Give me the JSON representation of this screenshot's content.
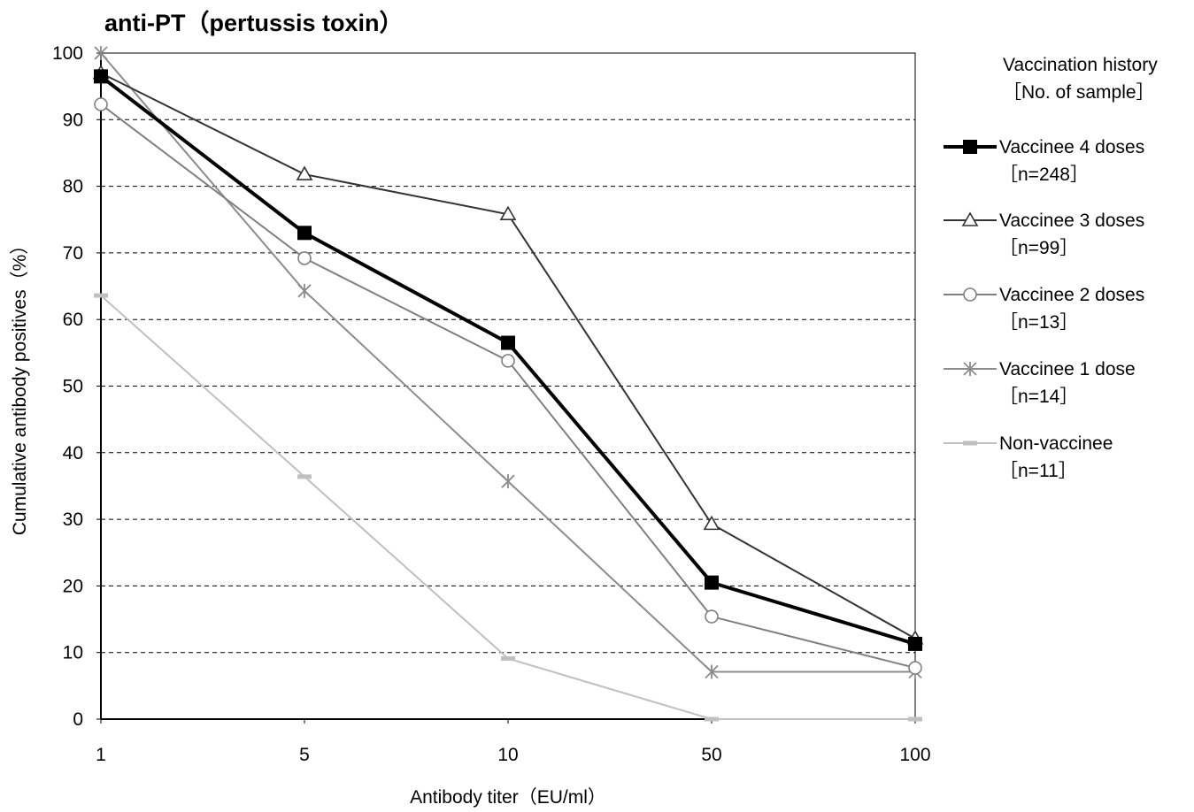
{
  "chart_data": {
    "type": "line",
    "title": "anti-PT（pertussis toxin）",
    "xlabel": "Antibody titer（EU/ml）",
    "ylabel": "Cumulative antibody positives（%）",
    "categories": [
      "1",
      "5",
      "10",
      "50",
      "100"
    ],
    "ylim": [
      0,
      100
    ],
    "yticks": [
      "0",
      "10",
      "20",
      "30",
      "40",
      "50",
      "60",
      "70",
      "80",
      "90",
      "100"
    ],
    "grid": "horizontal dashed",
    "legend_position": "right",
    "legend_title": [
      "Vaccination history",
      "［No. of sample］"
    ],
    "series": [
      {
        "name": "Vaccinee 4 doses",
        "count": "［n=248］",
        "values": [
          96.5,
          73.0,
          56.5,
          20.5,
          11.3
        ],
        "color": "#000000",
        "marker": "square",
        "width": 4
      },
      {
        "name": "Vaccinee 3 doses",
        "count": "［n=99］",
        "values": [
          97.0,
          81.8,
          75.8,
          29.3,
          12.1
        ],
        "color": "#333333",
        "marker": "triangle",
        "width": 2
      },
      {
        "name": "Vaccinee 2 doses",
        "count": "［n=13］",
        "values": [
          92.3,
          69.2,
          53.8,
          15.4,
          7.7
        ],
        "color": "#808080",
        "marker": "circle",
        "width": 2
      },
      {
        "name": "Vaccinee 1 dose",
        "count": "［n=14］",
        "values": [
          100,
          64.3,
          35.7,
          7.1,
          7.1
        ],
        "color": "#8c8c8c",
        "marker": "star",
        "width": 2
      },
      {
        "name": "Non-vaccinee",
        "count": "［n=11］",
        "values": [
          63.6,
          36.4,
          9.1,
          0,
          0
        ],
        "color": "#c0c0c0",
        "marker": "dash",
        "width": 2
      }
    ]
  }
}
